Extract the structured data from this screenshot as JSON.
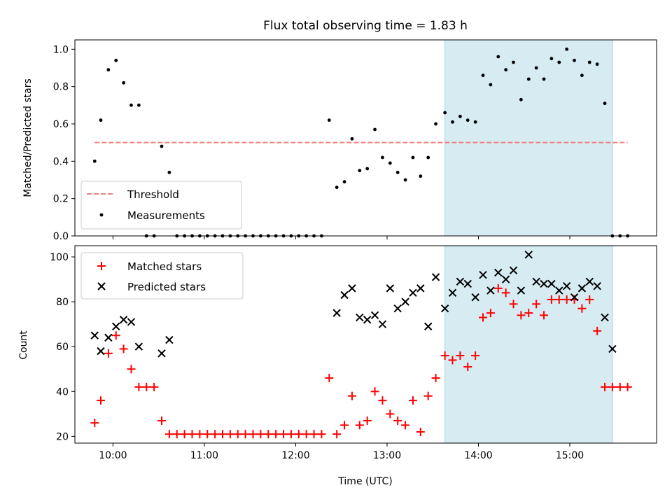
{
  "title": "Flux total observing time = 1.83 h",
  "xlabel": "Time (UTC)",
  "colors": {
    "threshold": "#f08080",
    "measurement": "#000000",
    "matched": "#ff0000",
    "predicted": "#000000",
    "span": "#add8e6"
  },
  "chart_data": [
    {
      "type": "scatter",
      "ylabel": "Matched/Predicted stars",
      "ylim": [
        0,
        1.05
      ],
      "yticks": [
        0.0,
        0.2,
        0.4,
        0.6,
        0.8,
        1.0
      ],
      "ytick_labels": [
        "0.0",
        "0.2",
        "0.4",
        "0.6",
        "0.8",
        "1.0"
      ],
      "xlim": [
        "09:35",
        "15:57"
      ],
      "xticks": [
        "10:00",
        "11:00",
        "12:00",
        "13:00",
        "14:00",
        "15:00"
      ],
      "xtick_labels": [],
      "legend_placement": "lower-left",
      "legend": [
        {
          "label": "Threshold",
          "kind": "dashed-line"
        },
        {
          "label": "Measurements",
          "kind": "dot"
        }
      ],
      "threshold": {
        "name": "Threshold",
        "value": 0.5,
        "x_range": [
          "09:48",
          "15:38"
        ]
      },
      "highlight_span": [
        "13:38",
        "15:28"
      ],
      "series": [
        {
          "name": "Measurements",
          "x": [
            "09:48",
            "09:52",
            "09:57",
            "10:02",
            "10:07",
            "10:12",
            "10:17",
            "10:22",
            "10:27",
            "10:32",
            "10:37",
            "10:42",
            "10:47",
            "10:52",
            "10:57",
            "11:02",
            "11:07",
            "11:12",
            "11:17",
            "11:22",
            "11:27",
            "11:32",
            "11:37",
            "11:42",
            "11:47",
            "11:52",
            "11:57",
            "12:02",
            "12:07",
            "12:12",
            "12:17",
            "12:22",
            "12:27",
            "12:32",
            "12:37",
            "12:42",
            "12:47",
            "12:52",
            "12:57",
            "13:02",
            "13:07",
            "13:12",
            "13:17",
            "13:22",
            "13:27",
            "13:32",
            "13:38",
            "13:43",
            "13:48",
            "13:53",
            "13:58",
            "14:03",
            "14:08",
            "14:13",
            "14:18",
            "14:23",
            "14:28",
            "14:33",
            "14:38",
            "14:43",
            "14:48",
            "14:53",
            "14:58",
            "15:03",
            "15:08",
            "15:13",
            "15:18",
            "15:23",
            "15:28",
            "15:33",
            "15:38"
          ],
          "y": [
            0.4,
            0.62,
            0.89,
            0.94,
            0.82,
            0.7,
            0.7,
            0.0,
            0.0,
            0.48,
            0.34,
            0.0,
            0.0,
            0.0,
            0.0,
            0.0,
            0.0,
            0.0,
            0.0,
            0.0,
            0.0,
            0.0,
            0.0,
            0.0,
            0.0,
            0.0,
            0.0,
            0.0,
            0.0,
            0.0,
            0.0,
            0.62,
            0.26,
            0.29,
            0.52,
            0.35,
            0.36,
            0.57,
            0.42,
            0.39,
            0.34,
            0.3,
            0.42,
            0.32,
            0.42,
            0.6,
            0.66,
            0.61,
            0.64,
            0.62,
            0.61,
            0.86,
            0.81,
            0.96,
            0.89,
            0.93,
            0.73,
            0.84,
            0.9,
            0.84,
            0.95,
            0.93,
            1.0,
            0.94,
            0.86,
            0.93,
            0.92,
            0.71,
            0.0,
            0.0,
            0.0
          ]
        }
      ]
    },
    {
      "type": "scatter",
      "ylabel": "Count",
      "ylim": [
        17,
        105
      ],
      "yticks": [
        20,
        40,
        60,
        80,
        100
      ],
      "ytick_labels": [
        "20",
        "40",
        "60",
        "80",
        "100"
      ],
      "xlim": [
        "09:35",
        "15:57"
      ],
      "xticks": [
        "10:00",
        "11:00",
        "12:00",
        "13:00",
        "14:00",
        "15:00"
      ],
      "xtick_labels": [
        "10:00",
        "11:00",
        "12:00",
        "13:00",
        "14:00",
        "15:00"
      ],
      "legend_placement": "upper-left",
      "legend": [
        {
          "label": "Matched stars",
          "kind": "plus"
        },
        {
          "label": "Predicted stars",
          "kind": "x"
        }
      ],
      "highlight_span": [
        "13:38",
        "15:28"
      ],
      "series": [
        {
          "name": "Matched stars",
          "x": [
            "09:48",
            "09:52",
            "09:57",
            "10:02",
            "10:07",
            "10:12",
            "10:17",
            "10:22",
            "10:27",
            "10:32",
            "10:37",
            "10:42",
            "10:47",
            "10:52",
            "10:57",
            "11:02",
            "11:07",
            "11:12",
            "11:17",
            "11:22",
            "11:27",
            "11:32",
            "11:37",
            "11:42",
            "11:47",
            "11:52",
            "11:57",
            "12:02",
            "12:07",
            "12:12",
            "12:17",
            "12:22",
            "12:27",
            "12:32",
            "12:37",
            "12:42",
            "12:47",
            "12:52",
            "12:57",
            "13:02",
            "13:07",
            "13:12",
            "13:17",
            "13:22",
            "13:27",
            "13:32",
            "13:38",
            "13:43",
            "13:48",
            "13:53",
            "13:58",
            "14:03",
            "14:08",
            "14:13",
            "14:18",
            "14:23",
            "14:28",
            "14:33",
            "14:38",
            "14:43",
            "14:48",
            "14:53",
            "14:58",
            "15:03",
            "15:08",
            "15:13",
            "15:18",
            "15:23",
            "15:28",
            "15:33",
            "15:38"
          ],
          "y": [
            26,
            36,
            57,
            65,
            59,
            50,
            42,
            42,
            42,
            27,
            21,
            21,
            21,
            21,
            21,
            21,
            21,
            21,
            21,
            21,
            21,
            21,
            21,
            21,
            21,
            21,
            21,
            21,
            21,
            21,
            21,
            46,
            21,
            25,
            38,
            25,
            27,
            40,
            36,
            30,
            27,
            25,
            36,
            22,
            38,
            46,
            56,
            54,
            56,
            51,
            56,
            73,
            75,
            86,
            84,
            79,
            74,
            75,
            79,
            74,
            81,
            81,
            81,
            81,
            77,
            81,
            67,
            42,
            42,
            42,
            42
          ]
        },
        {
          "name": "Predicted stars",
          "x": [
            "09:48",
            "09:52",
            "09:57",
            "10:02",
            "10:07",
            "10:12",
            "10:17",
            "10:32",
            "10:37",
            "12:27",
            "12:32",
            "12:37",
            "12:42",
            "12:47",
            "12:52",
            "12:57",
            "13:02",
            "13:07",
            "13:12",
            "13:17",
            "13:22",
            "13:27",
            "13:32",
            "13:38",
            "13:43",
            "13:48",
            "13:53",
            "13:58",
            "14:03",
            "14:08",
            "14:13",
            "14:18",
            "14:23",
            "14:28",
            "14:33",
            "14:38",
            "14:43",
            "14:48",
            "14:53",
            "14:58",
            "15:03",
            "15:08",
            "15:13",
            "15:18",
            "15:23",
            "15:28"
          ],
          "y": [
            65,
            58,
            64,
            69,
            72,
            71,
            60,
            57,
            63,
            75,
            83,
            86,
            73,
            72,
            74,
            70,
            86,
            77,
            80,
            84,
            86,
            69,
            91,
            77,
            84,
            89,
            88,
            82,
            92,
            85,
            93,
            90,
            94,
            85,
            101,
            89,
            88,
            88,
            85,
            87,
            82,
            86,
            89,
            87,
            73,
            59
          ]
        }
      ]
    }
  ]
}
